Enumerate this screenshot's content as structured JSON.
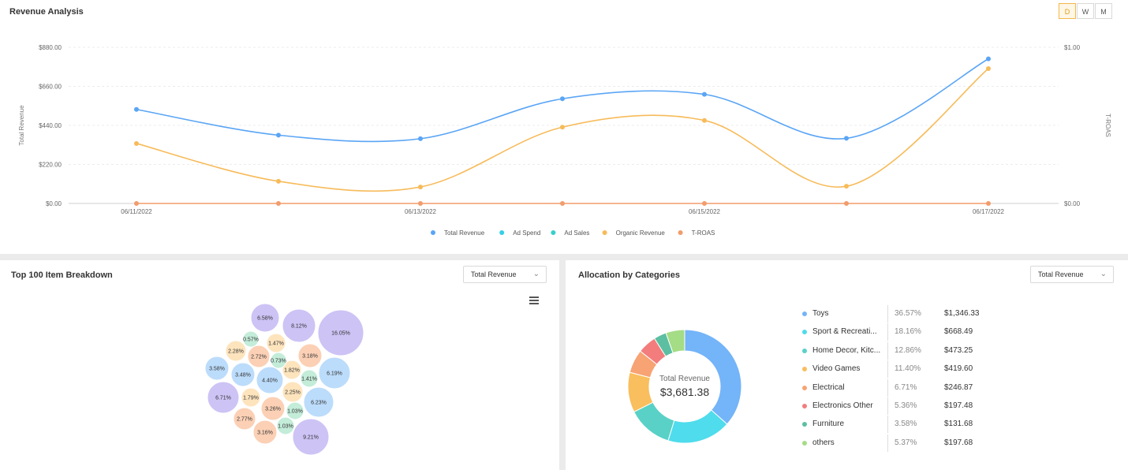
{
  "revenue_panel": {
    "title": "Revenue Analysis",
    "toggle": [
      "D",
      "W",
      "M"
    ],
    "active_toggle": "D"
  },
  "items_panel": {
    "title": "Top 100 Item Breakdown",
    "select_value": "Total Revenue"
  },
  "categories_panel": {
    "title": "Allocation by Categories",
    "select_value": "Total Revenue",
    "donut_center_label": "Total Revenue",
    "donut_center_value": "$3,681.38"
  },
  "chart_data": [
    {
      "type": "line",
      "ylabel": "Total Revenue",
      "y2label": "T-ROAS",
      "y_ticks": [
        "$0.00",
        "$220.00",
        "$440.00",
        "$660.00",
        "$880.00"
      ],
      "ylim": [
        0,
        880
      ],
      "y2_ticks": [
        "$0.00",
        "$1.00"
      ],
      "y2lim": [
        0,
        1
      ],
      "x": [
        "06/11/2022",
        "06/12/2022",
        "06/13/2022",
        "06/14/2022",
        "06/15/2022",
        "06/16/2022",
        "06/17/2022"
      ],
      "x_tick_labels": [
        "06/11/2022",
        "",
        "06/13/2022",
        "",
        "06/15/2022",
        "",
        "06/17/2022"
      ],
      "smooth": true,
      "grid": true,
      "legend_position": "bottom",
      "series": [
        {
          "name": "Total Revenue",
          "color": "#5aa5f5",
          "values": [
            530,
            385,
            365,
            590,
            615,
            367,
            815
          ]
        },
        {
          "name": "Ad Spend",
          "color": "#36cfe6",
          "values": null
        },
        {
          "name": "Ad Sales",
          "color": "#36cfc9",
          "values": null
        },
        {
          "name": "Organic Revenue",
          "color": "#f7bb5a",
          "values": [
            338,
            125,
            93,
            430,
            468,
            97,
            760
          ]
        },
        {
          "name": "T-ROAS",
          "color": "#f29c6b",
          "axis": "right",
          "values": [
            0,
            0,
            0,
            0,
            0,
            0,
            0
          ]
        }
      ]
    },
    {
      "type": "bubble",
      "colors": {
        "purple": "#cdc3f5",
        "blue": "#bcdcfb",
        "orange": "#fbd0b5",
        "yellow": "#fde4bd",
        "green": "#c3ecd9"
      },
      "values": [
        {
          "label": "16.05%",
          "color": "purple"
        },
        {
          "label": "9.21%",
          "color": "purple"
        },
        {
          "label": "8.12%",
          "color": "purple"
        },
        {
          "label": "6.71%",
          "color": "purple"
        },
        {
          "label": "6.58%",
          "color": "purple"
        },
        {
          "label": "6.23%",
          "color": "blue"
        },
        {
          "label": "6.19%",
          "color": "blue"
        },
        {
          "label": "4.40%",
          "color": "blue"
        },
        {
          "label": "3.58%",
          "color": "blue"
        },
        {
          "label": "3.48%",
          "color": "blue"
        },
        {
          "label": "3.26%",
          "color": "orange"
        },
        {
          "label": "3.18%",
          "color": "orange"
        },
        {
          "label": "3.16%",
          "color": "orange"
        },
        {
          "label": "2.77%",
          "color": "orange"
        },
        {
          "label": "2.72%",
          "color": "orange"
        },
        {
          "label": "2.28%",
          "color": "yellow"
        },
        {
          "label": "2.25%",
          "color": "yellow"
        },
        {
          "label": "1.82%",
          "color": "yellow"
        },
        {
          "label": "1.79%",
          "color": "yellow"
        },
        {
          "label": "1.47%",
          "color": "yellow"
        },
        {
          "label": "1.41%",
          "color": "green"
        },
        {
          "label": "1.03%",
          "color": "green"
        },
        {
          "label": "1.03%",
          "color": "green"
        },
        {
          "label": "0.73%",
          "color": "green"
        },
        {
          "label": "0.57%",
          "color": "green"
        }
      ]
    },
    {
      "type": "pie",
      "donut": true,
      "categories": [
        "Toys",
        "Sport & Recreati...",
        "Home Decor, Kitc...",
        "Video Games",
        "Electrical",
        "Electronics Other",
        "Furniture",
        "others"
      ],
      "percents": [
        "36.57%",
        "18.16%",
        "12.86%",
        "11.40%",
        "6.71%",
        "5.36%",
        "3.58%",
        "5.37%"
      ],
      "amounts": [
        "$1,346.33",
        "$668.49",
        "$473.25",
        "$419.60",
        "$246.87",
        "$197.48",
        "$131.68",
        "$197.68"
      ],
      "values": [
        1346.33,
        668.49,
        473.25,
        419.6,
        246.87,
        197.48,
        131.68,
        197.68
      ],
      "colors": [
        "#74b4f8",
        "#4fdcec",
        "#5ad1c7",
        "#f9be5d",
        "#f7a373",
        "#f37d7d",
        "#5cbfa2",
        "#a5dc86"
      ]
    }
  ]
}
